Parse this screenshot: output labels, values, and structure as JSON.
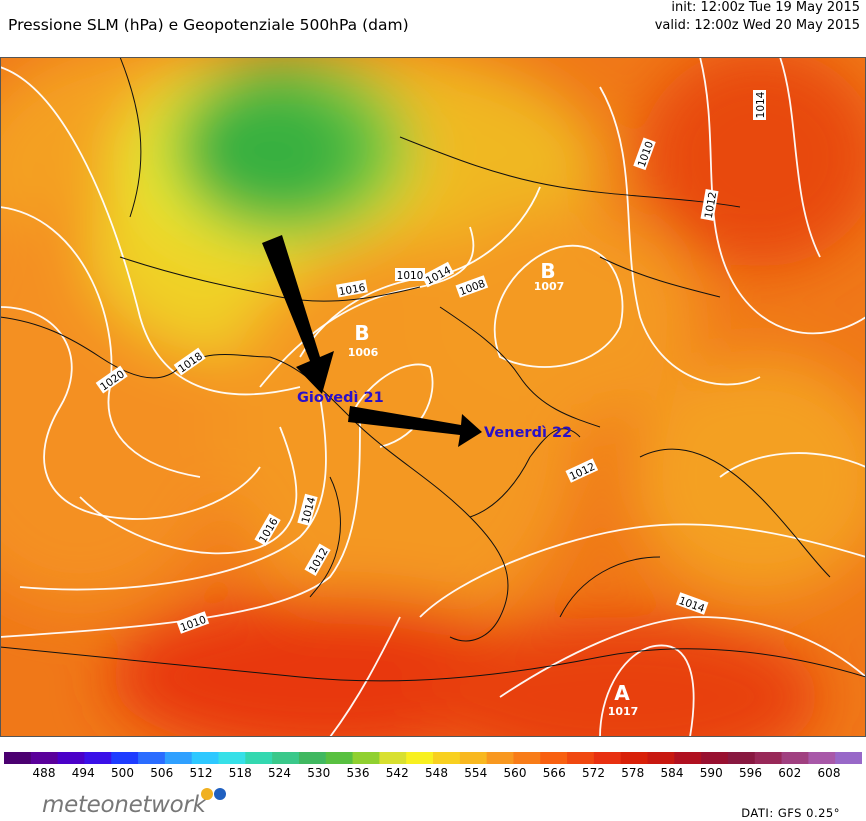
{
  "header": {
    "title": "Pressione SLM (hPa) e Geopotenziale 500hPa (dam)",
    "init": "init: 12:00z Tue 19 May 2015",
    "valid": "valid: 12:00z Wed 20 May 2015"
  },
  "isobar_labels": [
    "1016",
    "1014",
    "1010",
    "1008",
    "1018",
    "1020",
    "1016",
    "1014",
    "1012",
    "1010",
    "1012",
    "1014",
    "1010",
    "1012",
    "1014"
  ],
  "pressure_centers": [
    {
      "letter": "B",
      "value": "1007"
    },
    {
      "letter": "B",
      "value": "1006"
    },
    {
      "letter": "A",
      "value": "1017"
    }
  ],
  "annotations": {
    "first": "Giovedì 21",
    "second": "Venerdì 22"
  },
  "colorbar": {
    "labels": [
      "488",
      "494",
      "500",
      "506",
      "512",
      "518",
      "524",
      "530",
      "536",
      "542",
      "548",
      "554",
      "560",
      "566",
      "572",
      "578",
      "584",
      "590",
      "596",
      "602",
      "608"
    ],
    "colors": [
      "#4b0070",
      "#5a009a",
      "#4a00c8",
      "#3a10e8",
      "#1e3cff",
      "#2a6cff",
      "#2fa0ff",
      "#2ec8ff",
      "#36e0e8",
      "#33d8b0",
      "#3ac88a",
      "#40b860",
      "#58c040",
      "#90d030",
      "#d8e030",
      "#f8f020",
      "#f8d020",
      "#f8b820",
      "#f89820",
      "#f87c18",
      "#f86010",
      "#f04810",
      "#e83010",
      "#d82008",
      "#c81810",
      "#b01020",
      "#981030",
      "#881840",
      "#982858",
      "#a04080",
      "#a858a8",
      "#9868c8"
    ]
  },
  "branding": {
    "name": "meteonetwork",
    "dot_colors": [
      "#f0b020",
      "#2060c0"
    ]
  },
  "source": "DATI: GFS 0.25°"
}
